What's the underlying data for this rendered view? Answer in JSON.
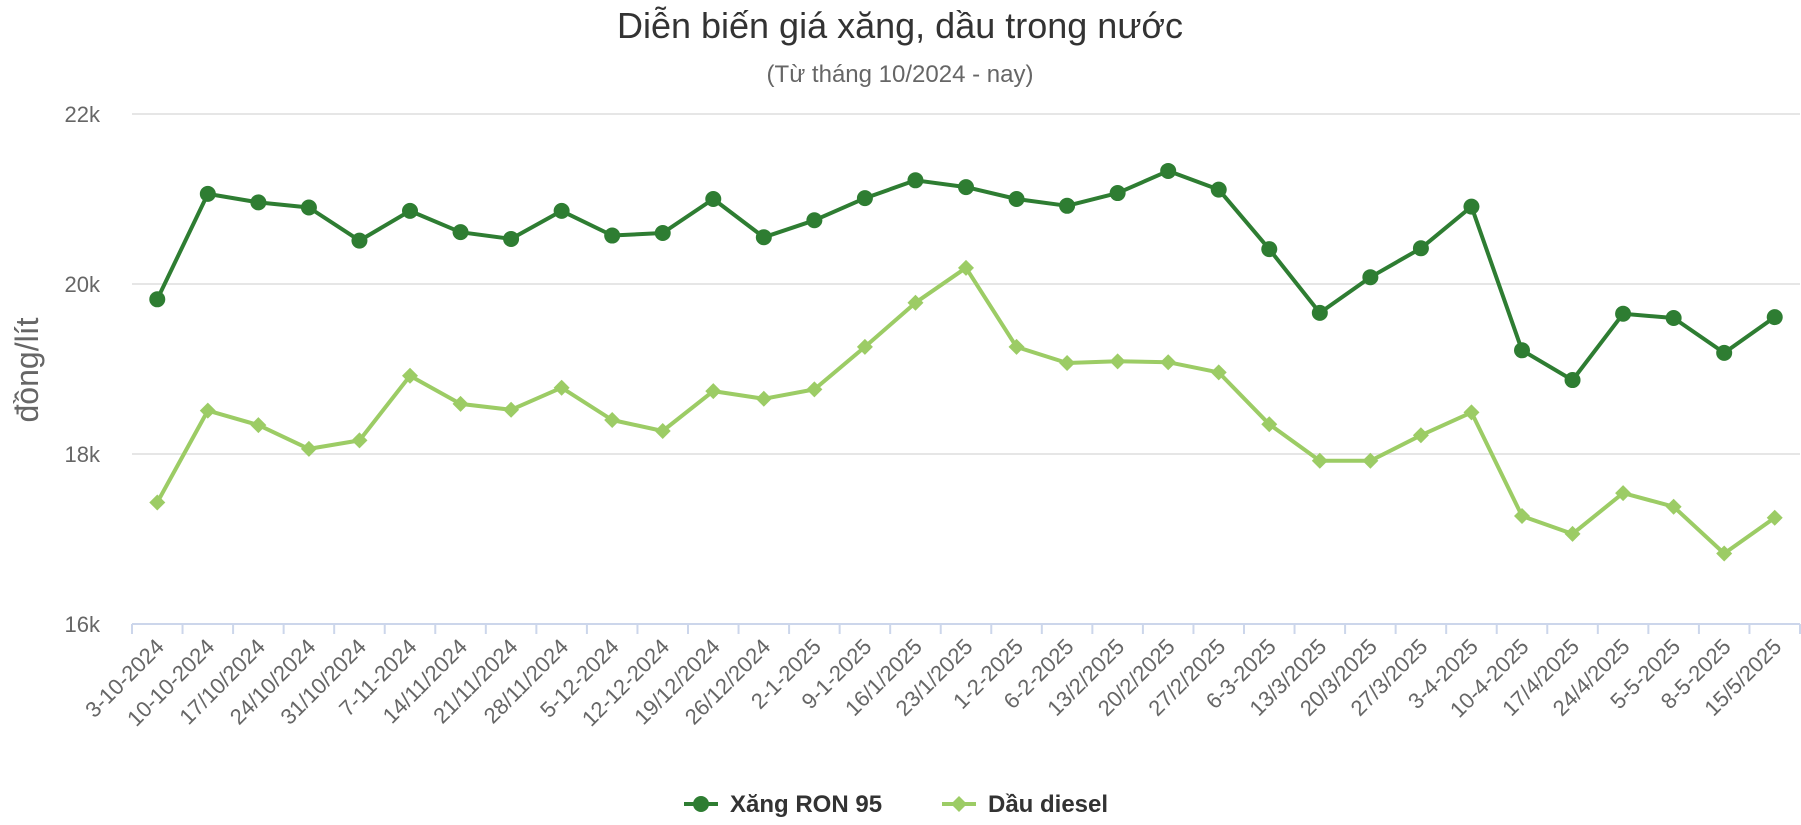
{
  "chart_data": {
    "type": "line",
    "title": "Diễn biến giá xăng, dầu trong nước",
    "subtitle": "(Từ tháng 10/2024 - nay)",
    "xlabel": "",
    "ylabel": "đồng/lít",
    "ylim": [
      16000,
      22000
    ],
    "yticks": [
      16000,
      18000,
      20000,
      22000
    ],
    "ytick_labels": [
      "16k",
      "18k",
      "20k",
      "22k"
    ],
    "grid": true,
    "legend_position": "bottom-center",
    "categories": [
      "3-10-2024",
      "10-10-2024",
      "17/10/2024",
      "24/10/2024",
      "31/10/2024",
      "7-11-2024",
      "14/11/2024",
      "21/11/2024",
      "28/11/2024",
      "5-12-2024",
      "12-12-2024",
      "19/12/2024",
      "26/12/2024",
      "2-1-2025",
      "9-1-2025",
      "16/1/2025",
      "23/1/2025",
      "1-2-2025",
      "6-2-2025",
      "13/2/2025",
      "20/2/2025",
      "27/2/2025",
      "6-3-2025",
      "13/3/2025",
      "20/3/2025",
      "27/3/2025",
      "3-4-2025",
      "10-4-2025",
      "17/4/2025",
      "24/4/2025",
      "5-5-2025",
      "8-5-2025",
      "15/5/2025"
    ],
    "series": [
      {
        "name": "Xăng RON 95",
        "color": "#2e7d32",
        "marker": "circle",
        "values": [
          19820,
          21060,
          20960,
          20900,
          20510,
          20860,
          20610,
          20530,
          20860,
          20570,
          20600,
          21000,
          20550,
          20750,
          21010,
          21220,
          21140,
          21000,
          20920,
          21070,
          21330,
          21110,
          20410,
          19660,
          20080,
          20420,
          20910,
          19220,
          18870,
          19650,
          19600,
          19190,
          19610
        ]
      },
      {
        "name": "Dầu diesel",
        "color": "#9ccc65",
        "marker": "diamond",
        "values": [
          17430,
          18510,
          18340,
          18060,
          18160,
          18920,
          18590,
          18520,
          18780,
          18400,
          18270,
          18740,
          18650,
          18760,
          19260,
          19780,
          20190,
          19260,
          19070,
          19090,
          19080,
          18960,
          18350,
          17920,
          17920,
          18220,
          18490,
          17270,
          17060,
          17540,
          17380,
          16830,
          17250
        ]
      }
    ]
  }
}
